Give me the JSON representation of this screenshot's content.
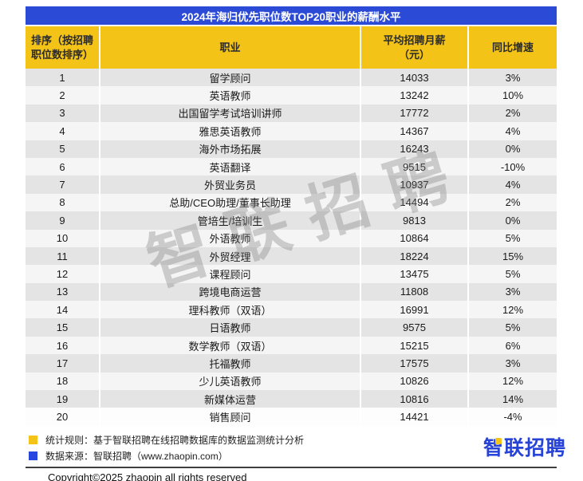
{
  "header": {
    "title": "2024年海归优先职位数TOP20职业的薪酬水平"
  },
  "table": {
    "headers": {
      "rank": "排序（按招聘职位数排序）",
      "job": "职业",
      "salary_line1": "平均招聘月薪",
      "salary_line2": "（元）",
      "growth": "同比增速"
    }
  },
  "chart_data": {
    "type": "table",
    "title": "2024年海归优先职位数TOP20职业的薪酬水平",
    "columns": [
      "排序（按招聘职位数排序）",
      "职业",
      "平均招聘月薪（元）",
      "同比增速"
    ],
    "rows": [
      [
        1,
        "留学顾问",
        14033,
        "3%"
      ],
      [
        2,
        "英语教师",
        13242,
        "10%"
      ],
      [
        3,
        "出国留学考试培训讲师",
        17772,
        "2%"
      ],
      [
        4,
        "雅思英语教师",
        14367,
        "4%"
      ],
      [
        5,
        "海外市场拓展",
        16243,
        "0%"
      ],
      [
        6,
        "英语翻译",
        9515,
        "-10%"
      ],
      [
        7,
        "外贸业务员",
        10937,
        "4%"
      ],
      [
        8,
        "总助/CEO助理/董事长助理",
        14494,
        "2%"
      ],
      [
        9,
        "管培生/培训生",
        9813,
        "0%"
      ],
      [
        10,
        "外语教师",
        10864,
        "5%"
      ],
      [
        11,
        "外贸经理",
        18224,
        "15%"
      ],
      [
        12,
        "课程顾问",
        13475,
        "5%"
      ],
      [
        13,
        "跨境电商运营",
        11808,
        "3%"
      ],
      [
        14,
        "理科教师（双语）",
        16991,
        "12%"
      ],
      [
        15,
        "日语教师",
        9575,
        "5%"
      ],
      [
        16,
        "数学教师（双语）",
        15215,
        "6%"
      ],
      [
        17,
        "托福教师",
        17575,
        "3%"
      ],
      [
        18,
        "少儿英语教师",
        10826,
        "12%"
      ],
      [
        19,
        "新媒体运营",
        10816,
        "14%"
      ],
      [
        20,
        "销售顾问",
        14421,
        "-4%"
      ]
    ]
  },
  "watermark": {
    "text": "智联招聘"
  },
  "footer": {
    "legend": [
      {
        "color": "#f3c317",
        "label": "统计规则：基于智联招聘在线招聘数据库的数据监测统计分析"
      },
      {
        "color": "#2747e0",
        "label": "数据来源：智联招聘（www.zhaopin.com）"
      }
    ],
    "copyright": "Copyright©2025 zhaopin all rights reserved",
    "logo_text": "智联招聘"
  },
  "colors": {
    "title_bar_blue": "#2b4bd7",
    "accent_yellow": "#f3c317",
    "legend_blue": "#2747e0",
    "logo_blue": "#2742d6",
    "row_gray": "#e4e4e4",
    "row_light": "#f5f5f5"
  }
}
